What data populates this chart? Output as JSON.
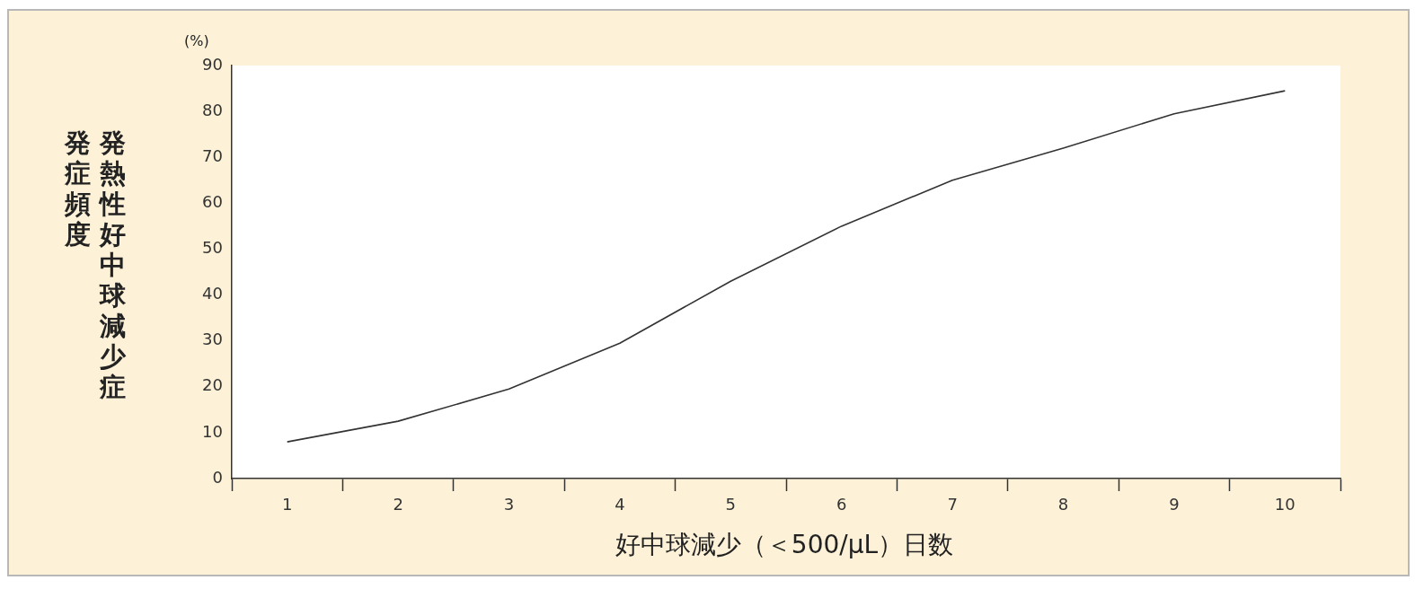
{
  "chart_data": {
    "type": "line",
    "ylabel": "発熱性好中球減少症発症頻度",
    "xlabel": "好中球減少（＜500/μL）日数",
    "annotations": [
      "(%)"
    ],
    "categories": [
      "1",
      "2",
      "3",
      "4",
      "5",
      "6",
      "7",
      "8",
      "9",
      "10"
    ],
    "series": [
      {
        "color": "#333333",
        "values": [
          8,
          12.5,
          19.5,
          29.5,
          43,
          55,
          65,
          72,
          79.5,
          84.5
        ]
      }
    ],
    "ylim": [
      0,
      90
    ],
    "yticks": [
      0,
      10,
      20,
      30,
      40,
      50,
      60,
      70,
      80,
      90
    ],
    "grid": false,
    "legend": false,
    "marker": "none",
    "line_style": "solid"
  }
}
